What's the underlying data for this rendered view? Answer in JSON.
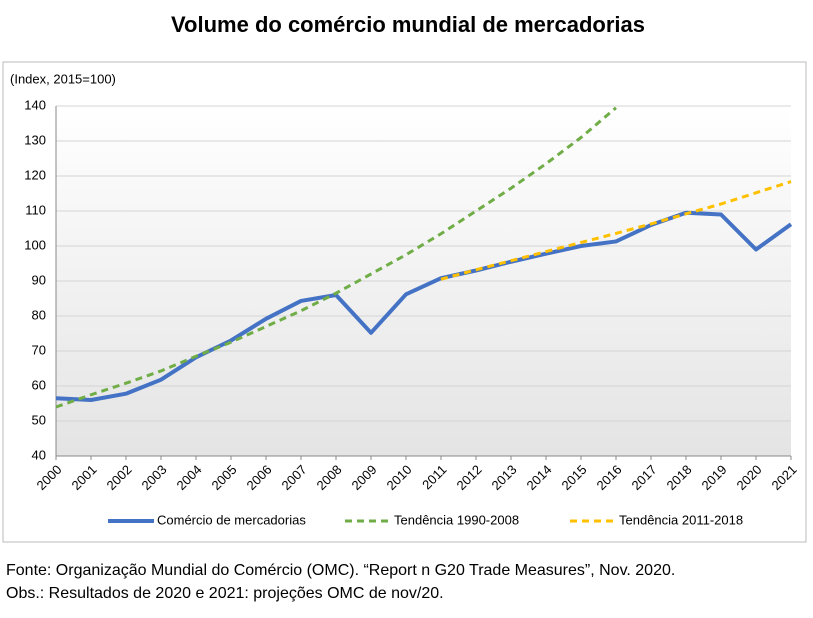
{
  "chart_data": {
    "type": "line",
    "title": "Volume do comércio mundial de mercadorias",
    "y_label": "(Index,  2015=100)",
    "categories": [
      "2000",
      "2001",
      "2002",
      "2003",
      "2004",
      "2005",
      "2006",
      "2007",
      "2008",
      "2009",
      "2010",
      "2011",
      "2012",
      "2013",
      "2014",
      "2015",
      "2016",
      "2017",
      "2018",
      "2019",
      "2020",
      "2021"
    ],
    "series": [
      {
        "name": "Comércio de mercadorias",
        "color": "#4472c4",
        "dash": false,
        "values": [
          56.5,
          56,
          57.8,
          61.8,
          68.2,
          73,
          79.2,
          84.3,
          86,
          75.2,
          86.2,
          90.8,
          93,
          95.5,
          97.8,
          100,
          101.3,
          106,
          109.5,
          109,
          99,
          106.2
        ]
      },
      {
        "name": "Tendência 1990-2008",
        "color": "#70ad47",
        "dash": true,
        "values": [
          54,
          57.5,
          60.8,
          64.3,
          68.5,
          72.5,
          77,
          81.5,
          86.5,
          92,
          97.5,
          103.5,
          110,
          116.5,
          123.5,
          131,
          139.5,
          null,
          null,
          null,
          null,
          null
        ]
      },
      {
        "name": "Tendência 2011-2018",
        "color": "#ffc000",
        "dash": true,
        "values": [
          null,
          null,
          null,
          null,
          null,
          null,
          null,
          null,
          null,
          null,
          null,
          90.5,
          93.2,
          95.8,
          98.4,
          101,
          103.6,
          106.3,
          109.2,
          112,
          115.2,
          118.4
        ]
      }
    ],
    "ylim": [
      40,
      140
    ],
    "yticks": [
      40,
      50,
      60,
      70,
      80,
      90,
      100,
      110,
      120,
      130,
      140
    ],
    "grid": true
  },
  "footnotes": [
    "Fonte: Organização Mundial do Comércio (OMC). “Report n G20 Trade Measures”, Nov. 2020.",
    "Obs.: Resultados de 2020 e 2021: projeções OMC de nov/20."
  ]
}
